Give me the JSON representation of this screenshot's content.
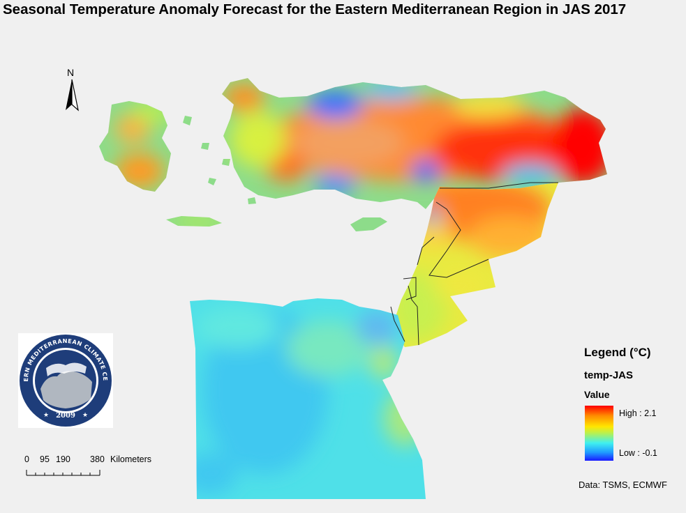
{
  "title": "Seasonal Temperature Anomaly Forecast for the Eastern Mediterranean Region in JAS 2017",
  "north_arrow": {
    "label": "N"
  },
  "logo": {
    "org_name": "EASTERN MEDITERRANEAN CLIMATE CENTRE",
    "year": "2009",
    "colors": {
      "ring": "#1e3d7a",
      "inner": "#1e3d7a",
      "land": "#b0b7c0"
    }
  },
  "scale_bar": {
    "ticks": [
      "0",
      "95",
      "190",
      "380"
    ],
    "unit": "Kilometers"
  },
  "legend": {
    "title": "Legend (°C)",
    "layer": "temp-JAS",
    "value_label": "Value",
    "high": "High : 2.1",
    "low": "Low : -0.1",
    "colors": [
      "#ff0000",
      "#ff8a00",
      "#ffe600",
      "#b8f050",
      "#3ff0f0",
      "#1f9bff",
      "#1a1aff"
    ]
  },
  "source": "Data:  TSMS, ECMWF"
}
